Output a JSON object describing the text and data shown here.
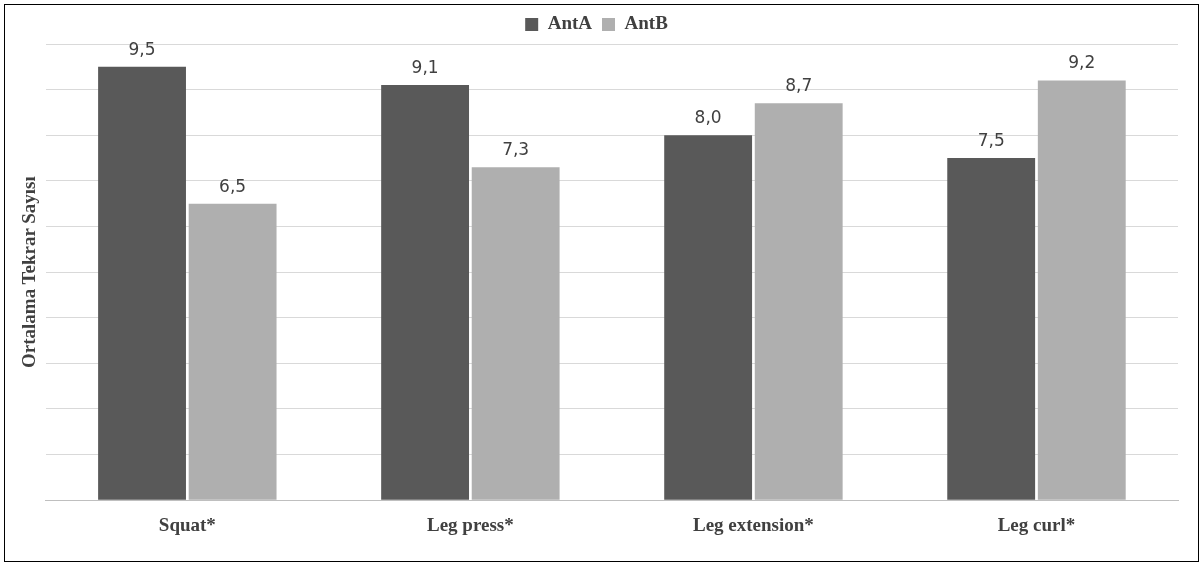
{
  "chart_data": {
    "type": "bar",
    "ylabel": "Ortalama Tekrar Sayısı",
    "categories": [
      "Squat*",
      "Leg press*",
      "Leg extension*",
      "Leg curl*"
    ],
    "series": [
      {
        "name": "AntA",
        "color": "#595959",
        "values": [
          9.5,
          9.1,
          8.0,
          7.5
        ],
        "value_labels": [
          "9,5",
          "9,1",
          "8,0",
          "7,5"
        ]
      },
      {
        "name": "AntB",
        "color": "#afafaf",
        "values": [
          6.5,
          7.3,
          8.7,
          9.2
        ],
        "value_labels": [
          "6,5",
          "7,3",
          "8,7",
          "9,2"
        ]
      }
    ],
    "ylim": [
      0,
      10
    ],
    "yticks": [
      {
        "value": 0,
        "label": null
      },
      {
        "value": 1,
        "label": null
      },
      {
        "value": 2,
        "label": null
      },
      {
        "value": 3,
        "label": null
      },
      {
        "value": 4,
        "label": null
      },
      {
        "value": 5,
        "label": null
      },
      {
        "value": 6,
        "label": null
      },
      {
        "value": 7,
        "label": null
      },
      {
        "value": 8,
        "label": null
      },
      {
        "value": 9,
        "label": null
      },
      {
        "value": 10,
        "label": null
      }
    ],
    "grid": "y",
    "legend": "top",
    "tick_labels": "x"
  }
}
